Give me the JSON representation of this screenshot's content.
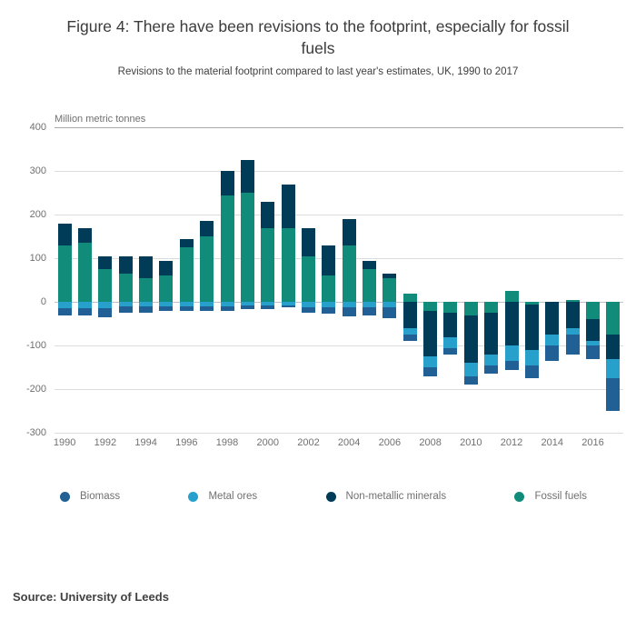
{
  "title": "Figure 4: There have been revisions to the footprint, especially for fossil fuels",
  "subtitle": "Revisions to the material footprint compared to last year's estimates, UK, 1990 to 2017",
  "source": "Source: University of Leeds",
  "chart_data": {
    "type": "bar",
    "stacked": true,
    "title": "Figure 4: There have been revisions to the footprint, especially for fossil fuels",
    "subtitle": "Revisions to the material footprint compared to last year's estimates, UK, 1990 to 2017",
    "unit_label": "Million metric tonnes",
    "grid": true,
    "legend_position": "bottom",
    "ylim": [
      -300,
      400
    ],
    "y_ticks": [
      400,
      300,
      200,
      100,
      0,
      -100,
      -200,
      -300
    ],
    "years": [
      1990,
      1991,
      1992,
      1993,
      1994,
      1995,
      1996,
      1997,
      1998,
      1999,
      2000,
      2001,
      2002,
      2003,
      2004,
      2005,
      2006,
      2007,
      2008,
      2009,
      2010,
      2011,
      2012,
      2013,
      2014,
      2015,
      2016,
      2017
    ],
    "x_tick_labels": [
      "1990",
      "1992",
      "1994",
      "1996",
      "1998",
      "2000",
      "2002",
      "2004",
      "2006",
      "2008",
      "2010",
      "2012",
      "2014",
      "2016"
    ],
    "stack_order_from_zero": [
      "Fossil fuels",
      "Non-metallic minerals",
      "Metal ores",
      "Biomass"
    ],
    "series": [
      {
        "name": "Biomass",
        "color": "#206095",
        "values": [
          -15,
          -15,
          -20,
          -15,
          -15,
          -10,
          -10,
          -10,
          -10,
          -8,
          -8,
          -5,
          -12,
          -15,
          -20,
          -18,
          -25,
          -15,
          -20,
          -15,
          -20,
          -20,
          -20,
          -30,
          -35,
          -45,
          -30,
          -75
        ]
      },
      {
        "name": "Metal ores",
        "color": "#27A0CC",
        "values": [
          -15,
          -15,
          -15,
          -10,
          -10,
          -10,
          -10,
          -10,
          -10,
          -8,
          -8,
          -8,
          -12,
          -12,
          -12,
          -12,
          -12,
          -15,
          -25,
          -25,
          -30,
          -25,
          -35,
          -35,
          -25,
          -15,
          -10,
          -45
        ]
      },
      {
        "name": "Non-metallic minerals",
        "color": "#003C57",
        "values": [
          50,
          35,
          30,
          40,
          50,
          35,
          20,
          35,
          55,
          75,
          60,
          100,
          65,
          70,
          60,
          20,
          10,
          -60,
          -105,
          -55,
          -110,
          -95,
          -100,
          -105,
          -75,
          -60,
          -50,
          -55
        ]
      },
      {
        "name": "Fossil fuels",
        "color": "#118C7B",
        "values": [
          130,
          135,
          75,
          65,
          55,
          60,
          125,
          150,
          245,
          250,
          170,
          170,
          105,
          60,
          130,
          75,
          55,
          20,
          -20,
          -25,
          -30,
          -25,
          25,
          -5,
          0,
          5,
          -40,
          -75
        ]
      }
    ]
  }
}
